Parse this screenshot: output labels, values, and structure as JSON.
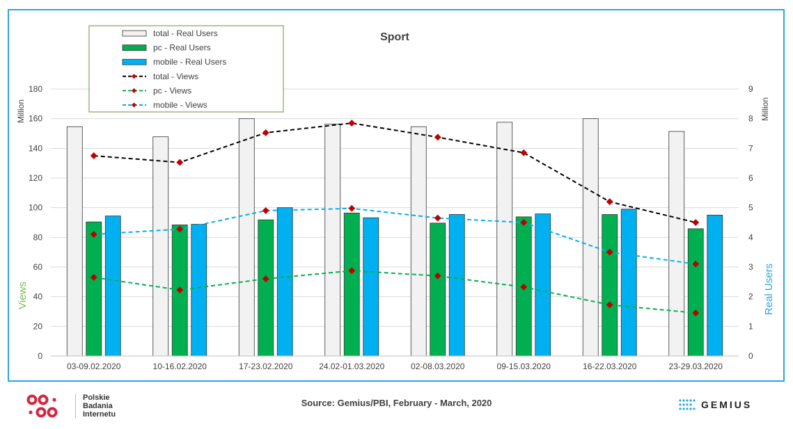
{
  "chart_data": {
    "type": "bar",
    "title": "Sport",
    "categories": [
      "03-09.02.2020",
      "10-16.02.2020",
      "17-23.02.2020",
      "24.02-01.03.2020",
      "02-08.03.2020",
      "09-15.03.2020",
      "16-22.03.2020",
      "23-29.03.2020"
    ],
    "y_left": {
      "label": "Views",
      "unit": "Million",
      "range": [
        0,
        180
      ],
      "ticks": [
        0,
        20,
        40,
        60,
        80,
        100,
        120,
        140,
        160,
        180
      ]
    },
    "y_right": {
      "label": "Real Users",
      "unit": "Million",
      "range": [
        0,
        9
      ],
      "ticks": [
        0,
        1,
        2,
        3,
        4,
        5,
        6,
        7,
        8,
        9
      ]
    },
    "grid": true,
    "legend_position": "top-left",
    "bar_series": [
      {
        "name": "total - Real Users",
        "axis": "right",
        "color": "#f2f2f2",
        "values": [
          7.73,
          7.39,
          8.0,
          7.82,
          7.73,
          7.88,
          8.0,
          7.57
        ]
      },
      {
        "name": "pc - Real Users",
        "axis": "right",
        "color": "#00b050",
        "values": [
          4.52,
          4.42,
          4.59,
          4.82,
          4.48,
          4.69,
          4.77,
          4.29
        ]
      },
      {
        "name": "mobile - Real Users",
        "axis": "right",
        "color": "#00b0f0",
        "values": [
          4.72,
          4.44,
          5.0,
          4.66,
          4.77,
          4.79,
          4.95,
          4.75
        ]
      }
    ],
    "line_series": [
      {
        "name": "total - Views",
        "axis": "left",
        "color": "#000000",
        "values": [
          135,
          130.5,
          150.5,
          157,
          147.5,
          137,
          104,
          90
        ]
      },
      {
        "name": "pc - Views",
        "axis": "left",
        "color": "#00b050",
        "values": [
          53,
          44.5,
          52,
          57.5,
          54,
          46.5,
          34.5,
          29
        ]
      },
      {
        "name": "mobile - Views",
        "axis": "left",
        "color": "#00b0f0",
        "values": [
          82,
          85.5,
          98,
          99.5,
          93,
          90,
          70,
          62
        ]
      }
    ]
  },
  "footer": {
    "source": "Source: Gemius/PBI, February - March, 2020",
    "pbi_logo_lines": [
      "Polskie",
      "Badania",
      "Internetu"
    ],
    "gemius_logo": "GEMIUS"
  }
}
